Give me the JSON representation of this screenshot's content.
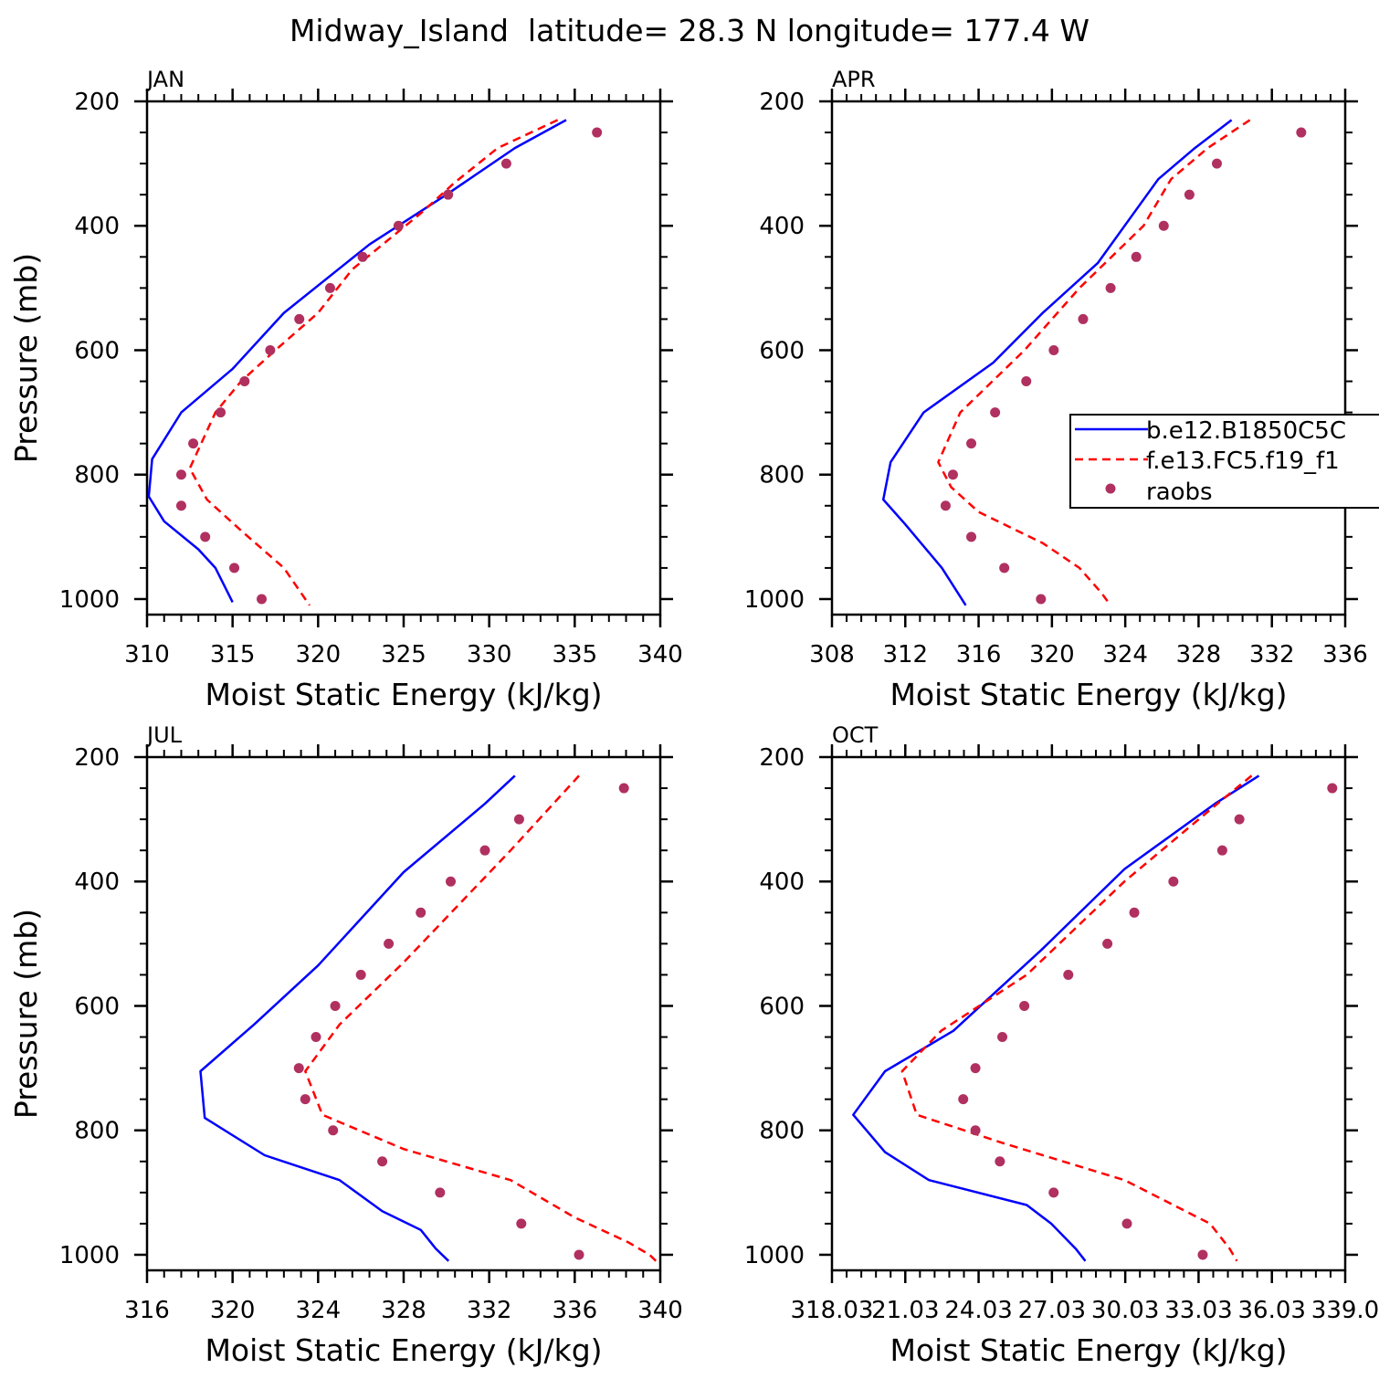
{
  "title": "Midway_Island  latitude= 28.3 N longitude= 177.4 W",
  "legend": {
    "entries": [
      {
        "label": "b.e12.B1850C5C",
        "color": "#0000ff",
        "style": "solid"
      },
      {
        "label": "f.e13.FC5.f19_f1",
        "color": "#ff0000",
        "style": "dashed"
      },
      {
        "label": "raobs",
        "color": "#b03060",
        "style": "dot"
      }
    ]
  },
  "chart_data": [
    {
      "type": "line",
      "panel_label": "JAN",
      "xlabel": "Moist Static Energy (kJ/kg)",
      "ylabel": "Pressure (mb)",
      "xlim": [
        310,
        340
      ],
      "xticks": [
        "310",
        "315",
        "320",
        "325",
        "330",
        "335",
        "340"
      ],
      "ylim": [
        1025,
        200
      ],
      "yticks": [
        "200",
        "400",
        "600",
        "800",
        "1000"
      ],
      "series": [
        {
          "name": "b.e12.B1850C5C",
          "color": "#0000ff",
          "style": "solid",
          "x": [
            334.5,
            331.5,
            327.5,
            323.0,
            318.0,
            315.0,
            312.0,
            310.3,
            310.1,
            311.0,
            313.0,
            314.0,
            315.0
          ],
          "y": [
            230,
            275,
            350,
            430,
            540,
            630,
            700,
            775,
            835,
            875,
            920,
            950,
            1005
          ]
        },
        {
          "name": "f.e13.FC5.f19_f1",
          "color": "#ff0000",
          "style": "dashed",
          "x": [
            334.0,
            330.5,
            328.0,
            326.0,
            322.0,
            320.0,
            317.5,
            315.5,
            314.0,
            312.5,
            313.5,
            315.5,
            318.0,
            318.5,
            319.5
          ],
          "y": [
            230,
            275,
            330,
            380,
            470,
            540,
            600,
            650,
            700,
            790,
            840,
            890,
            950,
            970,
            1010
          ]
        },
        {
          "name": "raobs",
          "color": "#b03060",
          "style": "dot",
          "x": [
            336.3,
            331.0,
            327.6,
            324.7,
            322.6,
            320.7,
            318.9,
            317.2,
            315.7,
            314.3,
            312.7,
            312.0,
            312.0,
            313.4,
            315.1,
            316.7
          ],
          "y": [
            250,
            300,
            350,
            400,
            450,
            500,
            550,
            600,
            650,
            700,
            750,
            800,
            850,
            900,
            950,
            1000
          ]
        }
      ]
    },
    {
      "type": "line",
      "panel_label": "APR",
      "xlabel": "Moist Static Energy (kJ/kg)",
      "ylabel": "",
      "xlim": [
        308,
        336
      ],
      "xticks": [
        "308",
        "312",
        "316",
        "320",
        "324",
        "328",
        "332",
        "336"
      ],
      "ylim": [
        1025,
        200
      ],
      "yticks": [
        "200",
        "400",
        "600",
        "800",
        "1000"
      ],
      "series": [
        {
          "name": "b.e12.B1850C5C",
          "color": "#0000ff",
          "style": "solid",
          "x": [
            329.8,
            327.8,
            325.8,
            322.5,
            319.5,
            316.8,
            313.0,
            311.2,
            310.8,
            312.0,
            314.0,
            315.3
          ],
          "y": [
            230,
            275,
            325,
            460,
            540,
            620,
            700,
            780,
            840,
            880,
            950,
            1010
          ]
        },
        {
          "name": "f.e13.FC5.f19_f1",
          "color": "#ff0000",
          "style": "dashed",
          "x": [
            330.8,
            328.5,
            326.5,
            325.0,
            321.5,
            318.5,
            315.0,
            313.8,
            314.5,
            316.0,
            319.5,
            321.5,
            322.7,
            323.2
          ],
          "y": [
            230,
            275,
            325,
            400,
            500,
            600,
            700,
            780,
            820,
            860,
            910,
            950,
            990,
            1010
          ]
        },
        {
          "name": "raobs",
          "color": "#b03060",
          "style": "dot",
          "x": [
            333.6,
            329.0,
            327.5,
            326.1,
            324.6,
            323.2,
            321.7,
            320.1,
            318.6,
            316.9,
            315.6,
            314.6,
            314.2,
            315.6,
            317.4,
            319.4
          ],
          "y": [
            250,
            300,
            350,
            400,
            450,
            500,
            550,
            600,
            650,
            700,
            750,
            800,
            850,
            900,
            950,
            1000
          ]
        }
      ]
    },
    {
      "type": "line",
      "panel_label": "JUL",
      "xlabel": "Moist Static Energy (kJ/kg)",
      "ylabel": "Pressure (mb)",
      "xlim": [
        316,
        340
      ],
      "xticks": [
        "316",
        "320",
        "324",
        "328",
        "332",
        "336",
        "340"
      ],
      "ylim": [
        1025,
        200
      ],
      "yticks": [
        "200",
        "400",
        "600",
        "800",
        "1000"
      ],
      "series": [
        {
          "name": "b.e12.B1850C5C",
          "color": "#0000ff",
          "style": "solid",
          "x": [
            333.2,
            331.8,
            328.0,
            324.0,
            321.0,
            318.5,
            318.7,
            321.5,
            325.0,
            327.0,
            328.8,
            329.5,
            330.1
          ],
          "y": [
            230,
            275,
            385,
            535,
            630,
            705,
            780,
            840,
            880,
            930,
            960,
            990,
            1010
          ]
        },
        {
          "name": "f.e13.FC5.f19_f1",
          "color": "#ff0000",
          "style": "dashed",
          "x": [
            336.2,
            335.0,
            333.0,
            328.0,
            325.0,
            323.4,
            324.2,
            328.0,
            333.0,
            336.0,
            338.5,
            339.5,
            339.8
          ],
          "y": [
            230,
            275,
            350,
            530,
            630,
            705,
            775,
            830,
            880,
            940,
            980,
            1000,
            1010
          ]
        },
        {
          "name": "raobs",
          "color": "#b03060",
          "style": "dot",
          "x": [
            338.3,
            333.4,
            331.8,
            330.2,
            328.8,
            327.3,
            326.0,
            324.8,
            323.9,
            323.1,
            323.4,
            324.7,
            327.0,
            329.7,
            333.5,
            336.2
          ],
          "y": [
            250,
            300,
            350,
            400,
            450,
            500,
            550,
            600,
            650,
            700,
            750,
            800,
            850,
            900,
            950,
            1000
          ]
        }
      ]
    },
    {
      "type": "line",
      "panel_label": "OCT",
      "xlabel": "Moist Static Energy (kJ/kg)",
      "ylabel": "",
      "xlim": [
        318.03,
        339.03
      ],
      "xticks": [
        "318.03",
        "21.03",
        "24.03",
        "27.03",
        "30.03",
        "33.03",
        "36.03",
        "339.0"
      ],
      "ylim": [
        1025,
        200
      ],
      "yticks": [
        "200",
        "400",
        "600",
        "800",
        "1000"
      ],
      "series": [
        {
          "name": "b.e12.B1850C5C",
          "color": "#0000ff",
          "style": "solid",
          "x": [
            335.5,
            333.7,
            330.0,
            326.6,
            323.0,
            320.2,
            318.9,
            320.2,
            322.0,
            326.0,
            327.0,
            328.0,
            328.4
          ],
          "y": [
            230,
            275,
            380,
            510,
            640,
            705,
            775,
            835,
            880,
            920,
            950,
            990,
            1010
          ]
        },
        {
          "name": "f.e13.FC5.f19_f1",
          "color": "#ff0000",
          "style": "dashed",
          "x": [
            335.2,
            333.8,
            330.0,
            326.0,
            322.5,
            320.9,
            321.5,
            325.0,
            330.0,
            333.5,
            334.3,
            334.6
          ],
          "y": [
            230,
            275,
            400,
            550,
            640,
            705,
            775,
            820,
            880,
            950,
            990,
            1010
          ]
        },
        {
          "name": "raobs",
          "color": "#b03060",
          "style": "dot",
          "x": [
            338.5,
            334.7,
            334.0,
            332.0,
            330.4,
            329.3,
            327.7,
            325.9,
            325.0,
            323.9,
            323.4,
            323.9,
            324.9,
            327.1,
            330.1,
            333.2
          ],
          "y": [
            250,
            300,
            350,
            400,
            450,
            500,
            550,
            600,
            650,
            700,
            750,
            800,
            850,
            900,
            950,
            1000
          ]
        }
      ]
    }
  ]
}
